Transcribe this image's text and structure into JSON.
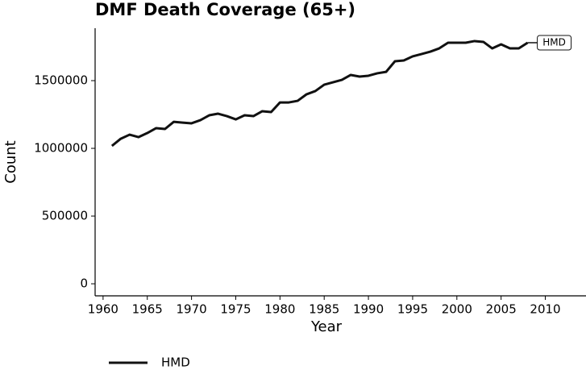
{
  "chart_data": {
    "type": "line",
    "title": "DMF Death Coverage (65+)",
    "x_label": "Year",
    "y_label": "Count",
    "x": [
      1961,
      1962,
      1963,
      1964,
      1965,
      1966,
      1967,
      1968,
      1969,
      1970,
      1971,
      1972,
      1973,
      1974,
      1975,
      1976,
      1977,
      1978,
      1979,
      1980,
      1981,
      1982,
      1983,
      1984,
      1985,
      1986,
      1987,
      1988,
      1989,
      1990,
      1991,
      1992,
      1993,
      1994,
      1995,
      1996,
      1997,
      1998,
      1999,
      2000,
      2001,
      2002,
      2003,
      2004,
      2005,
      2006,
      2007,
      2008
    ],
    "series": [
      {
        "name": "HMD",
        "color": "#111111",
        "values": [
          1018000,
          1071000,
          1101000,
          1083000,
          1113000,
          1149000,
          1143000,
          1196000,
          1190000,
          1185000,
          1208000,
          1244000,
          1256000,
          1238000,
          1214000,
          1244000,
          1238000,
          1274000,
          1268000,
          1339000,
          1339000,
          1351000,
          1399000,
          1423000,
          1470000,
          1488000,
          1506000,
          1542000,
          1530000,
          1536000,
          1554000,
          1565000,
          1643000,
          1649000,
          1679000,
          1696000,
          1714000,
          1738000,
          1780000,
          1780000,
          1780000,
          1792000,
          1786000,
          1738000,
          1768000,
          1738000,
          1738000,
          1780000
        ]
      }
    ],
    "xlim": [
      1959.1,
      2014.6
    ],
    "xticks": [
      1960,
      1965,
      1970,
      1975,
      1980,
      1985,
      1990,
      1995,
      2000,
      2005,
      2010
    ],
    "ylim": [
      -89000,
      1887000
    ],
    "yticks": [
      0,
      500000,
      1000000,
      1500000
    ]
  }
}
